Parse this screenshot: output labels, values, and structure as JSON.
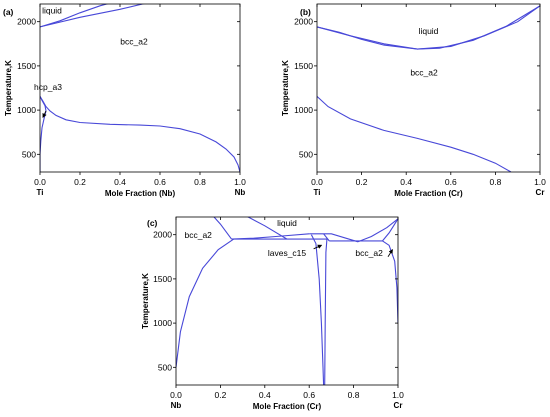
{
  "colors": {
    "curve": "#4848d8",
    "frame": "#000000",
    "arrow": "#000000"
  },
  "chart_data": [
    {
      "type": "line",
      "panel_label": "(a)",
      "xlabel": "Mole Fraction (Nb)",
      "ylabel": "Temperature,K",
      "xlim": [
        0,
        1
      ],
      "ylim": [
        300,
        2200
      ],
      "x_ticks": [
        0.0,
        0.2,
        0.4,
        0.6,
        0.8,
        1.0
      ],
      "x_tick_labels": [
        "0.0",
        "0.2",
        "0.4",
        "0.6",
        "0.8",
        "1.0"
      ],
      "y_ticks": [
        500,
        1000,
        1500,
        2000
      ],
      "y_tick_labels": [
        "500",
        "1000",
        "1500",
        "2000"
      ],
      "element_left": "Ti",
      "element_right": "Nb",
      "region_labels": [
        {
          "text": "liquid",
          "x": 0.06,
          "y": 2090
        },
        {
          "text": "bcc_a2",
          "x": 0.47,
          "y": 1740
        },
        {
          "text": "hcp_a3",
          "x": 0.04,
          "y": 1230
        }
      ],
      "arrows": [
        {
          "from": [
            0.03,
            990
          ],
          "to": [
            0.015,
            920
          ]
        }
      ],
      "series": [
        {
          "points": [
            [
              0,
              1941
            ],
            [
              0.1,
              2010
            ],
            [
              0.2,
              2100
            ],
            [
              0.3,
              2180
            ],
            [
              0.43,
              2260
            ]
          ]
        },
        {
          "points": [
            [
              0,
              1941
            ],
            [
              0.2,
              2050
            ],
            [
              0.4,
              2140
            ],
            [
              0.55,
              2220
            ],
            [
              0.58,
              2260
            ]
          ]
        },
        {
          "points": [
            [
              0,
              1155
            ],
            [
              0.015,
              1100
            ],
            [
              0.03,
              1040
            ],
            [
              0.05,
              990
            ],
            [
              0.08,
              940
            ],
            [
              0.13,
              890
            ],
            [
              0.2,
              860
            ],
            [
              0.35,
              840
            ],
            [
              0.5,
              830
            ],
            [
              0.6,
              820
            ],
            [
              0.7,
              790
            ],
            [
              0.8,
              730
            ],
            [
              0.88,
              640
            ],
            [
              0.93,
              560
            ],
            [
              0.97,
              470
            ],
            [
              0.99,
              380
            ],
            [
              1.0,
              300
            ]
          ]
        },
        {
          "points": [
            [
              0,
              1155
            ],
            [
              0.01,
              1110
            ],
            [
              0.025,
              1050
            ],
            [
              0.03,
              990
            ],
            [
              0.02,
              900
            ],
            [
              0.01,
              800
            ],
            [
              0.004,
              650
            ],
            [
              0,
              500
            ],
            [
              0,
              300
            ]
          ]
        }
      ]
    },
    {
      "type": "line",
      "panel_label": "(b)",
      "xlabel": "Mole Fraction (Cr)",
      "ylabel": "Temperature,K",
      "xlim": [
        0,
        1
      ],
      "ylim": [
        300,
        2200
      ],
      "x_ticks": [
        0.0,
        0.2,
        0.4,
        0.6,
        0.8,
        1.0
      ],
      "x_tick_labels": [
        "0.0",
        "0.2",
        "0.4",
        "0.6",
        "0.8",
        "1.0"
      ],
      "y_ticks": [
        500,
        1000,
        1500,
        2000
      ],
      "y_tick_labels": [
        "500",
        "1000",
        "1500",
        "2000"
      ],
      "element_left": "Ti",
      "element_right": "Cr",
      "region_labels": [
        {
          "text": "liquid",
          "x": 0.5,
          "y": 1860
        },
        {
          "text": "bcc_a2",
          "x": 0.48,
          "y": 1390
        }
      ],
      "arrows": [],
      "series": [
        {
          "points": [
            [
              0,
              1941
            ],
            [
              0.1,
              1880
            ],
            [
              0.2,
              1800
            ],
            [
              0.3,
              1735
            ],
            [
              0.45,
              1690
            ],
            [
              0.55,
              1700
            ],
            [
              0.7,
              1790
            ],
            [
              0.85,
              1950
            ],
            [
              1.0,
              2180
            ]
          ]
        },
        {
          "points": [
            [
              0,
              1941
            ],
            [
              0.15,
              1840
            ],
            [
              0.3,
              1750
            ],
            [
              0.45,
              1690
            ],
            [
              0.6,
              1720
            ],
            [
              0.75,
              1840
            ],
            [
              0.9,
              2000
            ],
            [
              1.0,
              2180
            ]
          ]
        },
        {
          "points": [
            [
              0,
              1155
            ],
            [
              0.05,
              1040
            ],
            [
              0.15,
              900
            ],
            [
              0.3,
              770
            ],
            [
              0.45,
              680
            ],
            [
              0.6,
              580
            ],
            [
              0.7,
              500
            ],
            [
              0.8,
              400
            ],
            [
              0.87,
              300
            ]
          ]
        }
      ]
    },
    {
      "type": "line",
      "panel_label": "(c)",
      "xlabel": "Mole Fraction (Cr)",
      "ylabel": "Temperature,K",
      "xlim": [
        0,
        1
      ],
      "ylim": [
        300,
        2200
      ],
      "x_ticks": [
        0.0,
        0.2,
        0.4,
        0.6,
        0.8,
        1.0
      ],
      "x_tick_labels": [
        "0.0",
        "0.2",
        "0.4",
        "0.6",
        "0.8",
        "1.0"
      ],
      "y_ticks": [
        500,
        1000,
        1500,
        2000
      ],
      "y_tick_labels": [
        "500",
        "1000",
        "1500",
        "2000"
      ],
      "element_left": "Nb",
      "element_right": "Cr",
      "region_labels": [
        {
          "text": "liquid",
          "x": 0.5,
          "y": 2100
        },
        {
          "text": "bcc_a2",
          "x": 0.1,
          "y": 1960
        },
        {
          "text": "laves_c15",
          "x": 0.5,
          "y": 1760
        },
        {
          "text": "bcc_a2",
          "x": 0.87,
          "y": 1760
        }
      ],
      "arrows": [
        {
          "from": [
            0.62,
            1840
          ],
          "to": [
            0.655,
            1880
          ]
        },
        {
          "from": [
            0.955,
            1750
          ],
          "to": [
            0.975,
            1830
          ]
        }
      ],
      "series": [
        {
          "points": [
            [
              0.15,
              2260
            ],
            [
              0.2,
              2120
            ],
            [
              0.25,
              1950
            ]
          ]
        },
        {
          "points": [
            [
              0.25,
              1950
            ],
            [
              0.35,
              1960
            ],
            [
              0.45,
              1980
            ],
            [
              0.6,
              2010
            ]
          ]
        },
        {
          "points": [
            [
              0.28,
              2260
            ],
            [
              0.4,
              2100
            ],
            [
              0.5,
              1950
            ]
          ]
        },
        {
          "points": [
            [
              0.6,
              2010
            ],
            [
              0.7,
              2010
            ],
            [
              0.82,
              1920
            ]
          ]
        },
        {
          "points": [
            [
              0.82,
              1920
            ],
            [
              0.88,
              1980
            ],
            [
              0.95,
              2080
            ],
            [
              1.0,
              2180
            ]
          ]
        },
        {
          "points": [
            [
              0.26,
              1950
            ],
            [
              0.68,
              1950
            ]
          ]
        },
        {
          "points": [
            [
              0.69,
              1930
            ],
            [
              0.93,
              1930
            ]
          ]
        },
        {
          "points": [
            [
              0,
              500
            ],
            [
              0.02,
              900
            ],
            [
              0.06,
              1300
            ],
            [
              0.12,
              1620
            ],
            [
              0.19,
              1830
            ],
            [
              0.26,
              1950
            ]
          ]
        },
        {
          "points": [
            [
              0.93,
              1930
            ],
            [
              0.96,
              1880
            ],
            [
              0.985,
              1700
            ],
            [
              0.995,
              1400
            ],
            [
              1.0,
              1000
            ]
          ]
        },
        {
          "points": [
            [
              0.93,
              1930
            ],
            [
              0.96,
              2020
            ],
            [
              0.98,
              2100
            ],
            [
              1.0,
              2180
            ]
          ]
        },
        {
          "points": [
            [
              0.61,
              2000
            ],
            [
              0.63,
              1900
            ],
            [
              0.645,
              1500
            ],
            [
              0.655,
              1000
            ],
            [
              0.662,
              500
            ],
            [
              0.665,
              300
            ]
          ]
        },
        {
          "points": [
            [
              0.68,
              1960
            ],
            [
              0.675,
              1800
            ],
            [
              0.672,
              1000
            ],
            [
              0.67,
              300
            ]
          ]
        },
        {
          "points": [
            [
              0.665,
              2010
            ],
            [
              0.69,
              1930
            ]
          ]
        }
      ]
    }
  ]
}
